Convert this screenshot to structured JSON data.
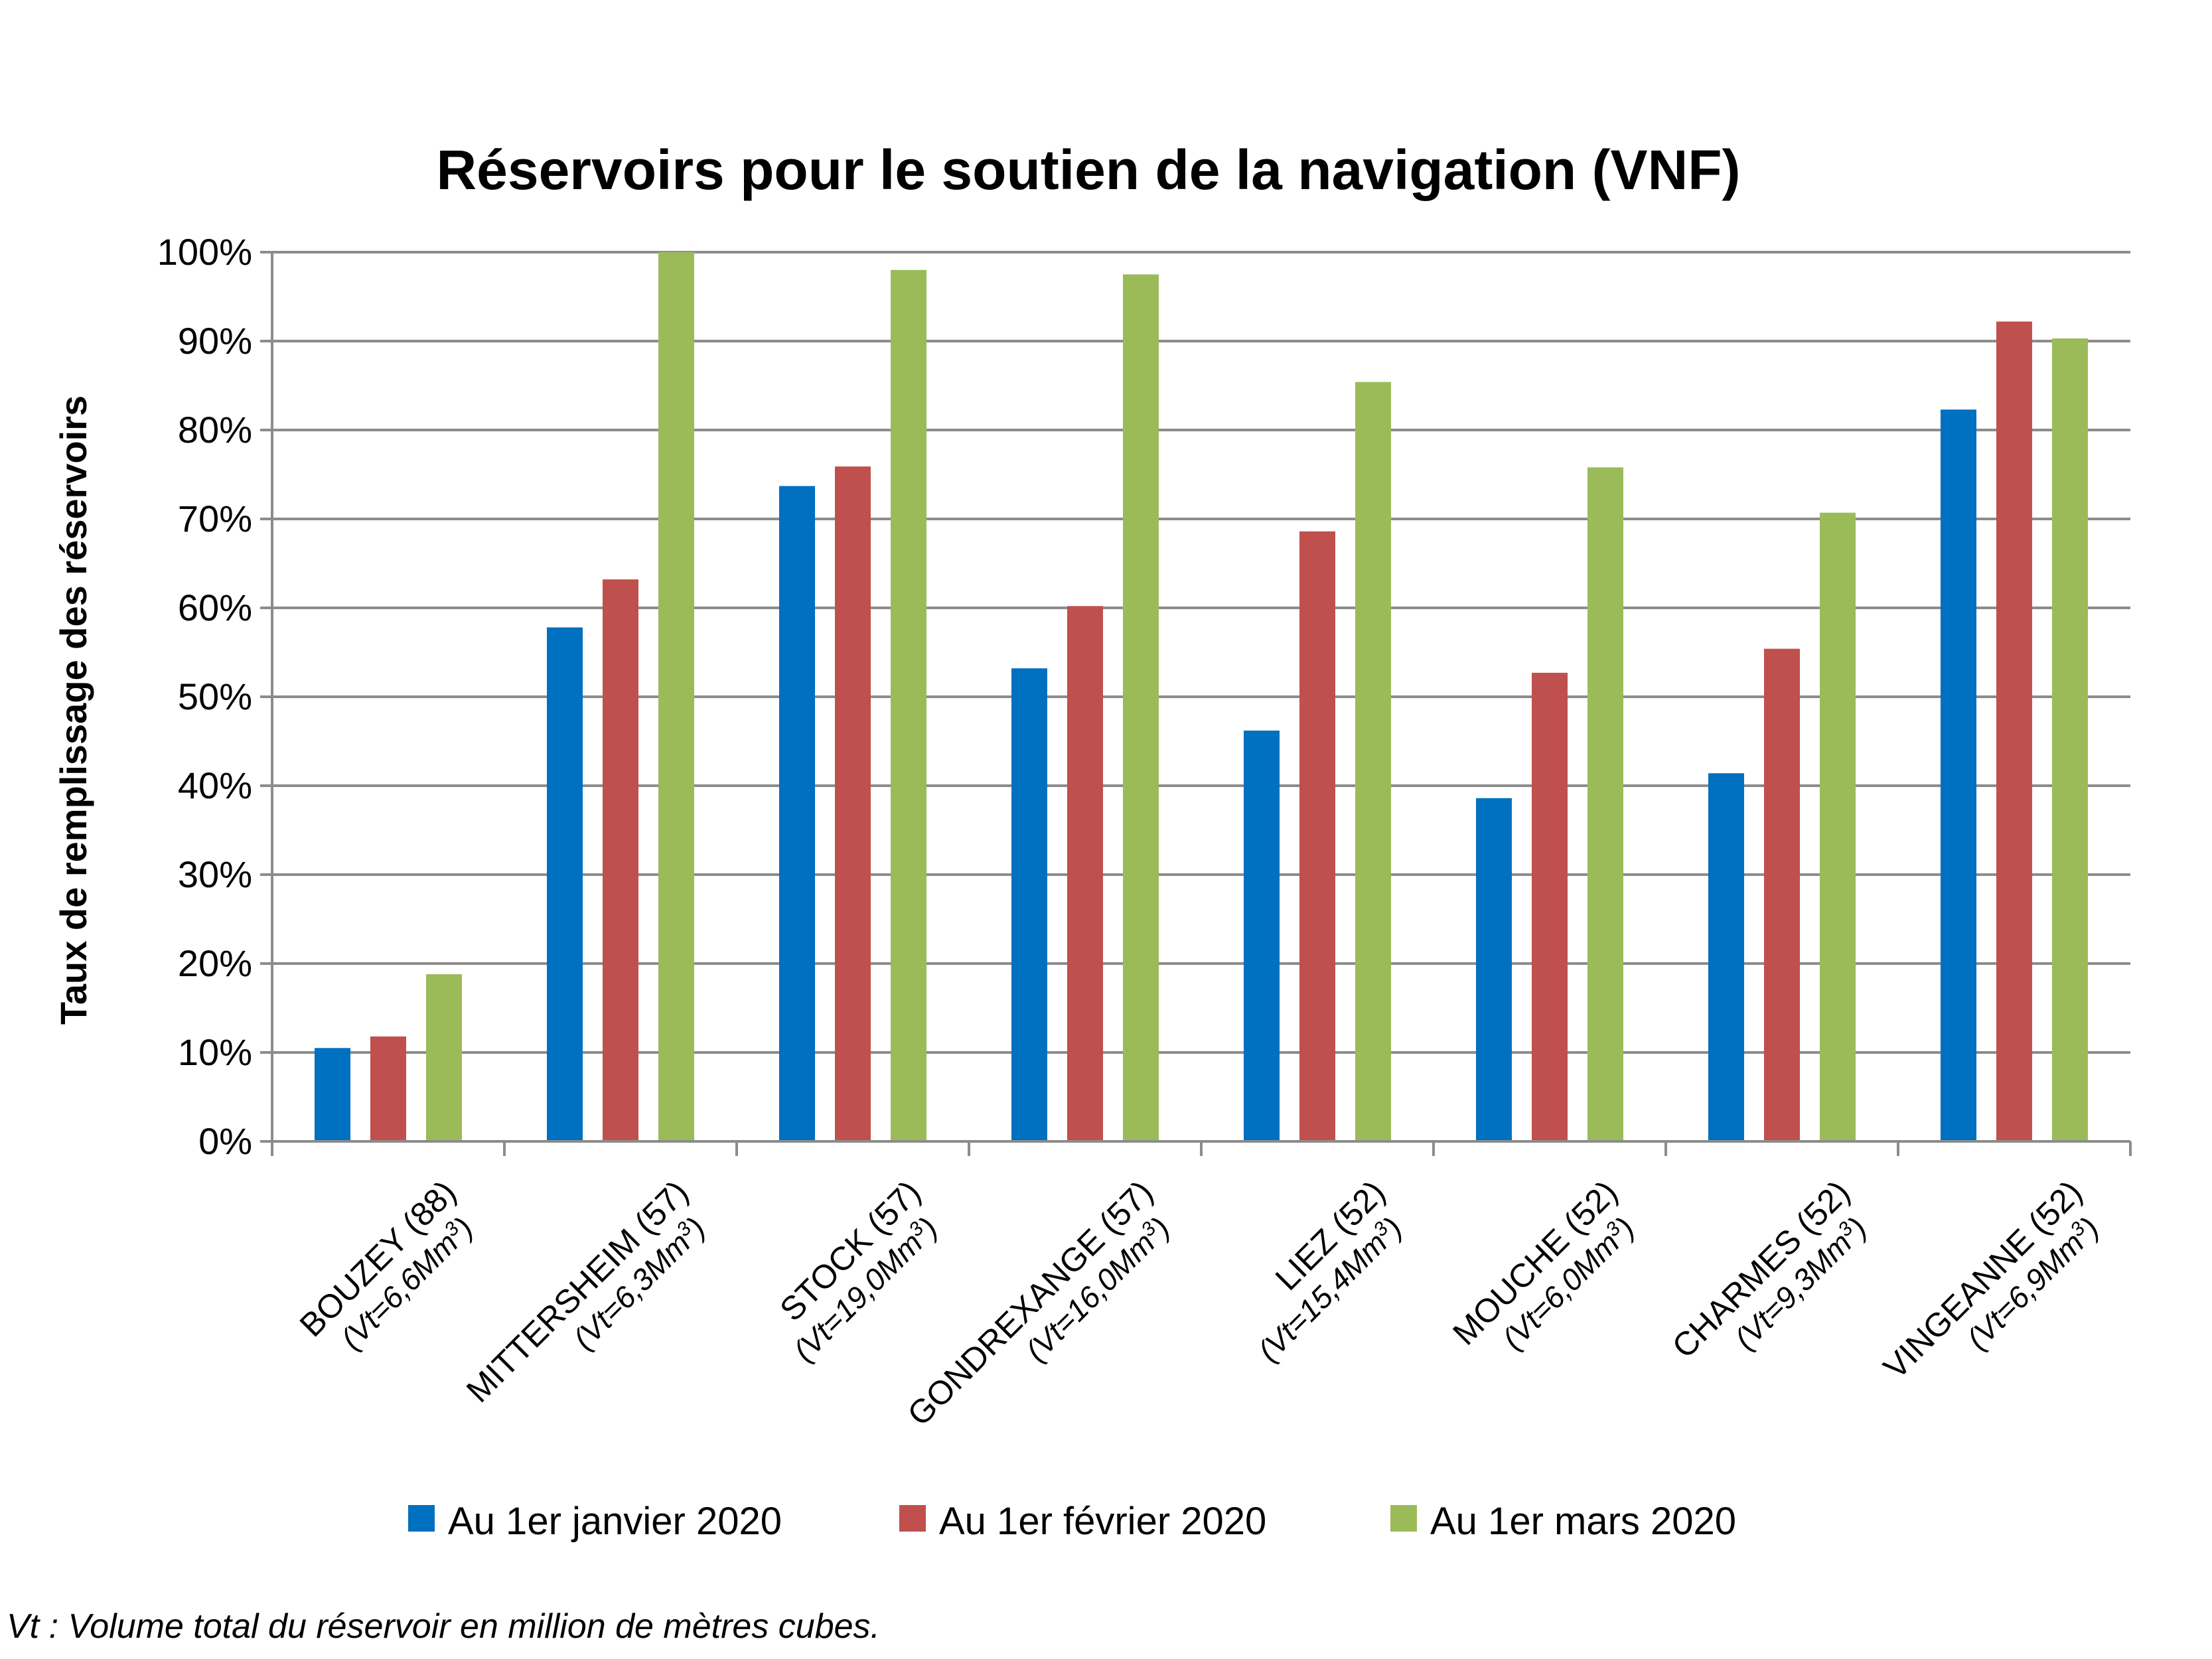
{
  "chart_data": {
    "type": "bar",
    "title": "Réservoirs pour le soutien de la navigation (VNF)",
    "ylabel": "Taux de remplissage des réservoirs",
    "xlabel": "",
    "ylim": [
      0,
      100
    ],
    "yticks": [
      "0%",
      "10%",
      "20%",
      "30%",
      "40%",
      "50%",
      "60%",
      "70%",
      "80%",
      "90%",
      "100%"
    ],
    "grid": true,
    "legend": "bottom",
    "categories": [
      {
        "name": "BOUZEY (88)",
        "volume": "(Vt=6,6Mm",
        "sup": "3",
        "volume_end": ")"
      },
      {
        "name": "MITTERSHEIM (57)",
        "volume": "(Vt=6,3Mm",
        "sup": "3",
        "volume_end": ")"
      },
      {
        "name": "STOCK (57)",
        "volume": "(Vt=19,0Mm",
        "sup": "3",
        "volume_end": ")"
      },
      {
        "name": "GONDREXANGE (57)",
        "volume": "(Vt=16,0Mm",
        "sup": "3",
        "volume_end": ")"
      },
      {
        "name": "LIEZ (52)",
        "volume": "(Vt=15,4Mm",
        "sup": "3",
        "volume_end": ")"
      },
      {
        "name": "MOUCHE (52)",
        "volume": "(Vt=6,0Mm",
        "sup": "3",
        "volume_end": ")"
      },
      {
        "name": "CHARMES (52)",
        "volume": "(Vt=9,3Mm",
        "sup": "3",
        "volume_end": ")"
      },
      {
        "name": "VINGEANNE (52)",
        "volume": "(Vt=6,9Mm",
        "sup": "3",
        "volume_end": ")"
      }
    ],
    "series": [
      {
        "name": "Au 1er janvier 2020",
        "color": "#0070c0",
        "values": [
          10.5,
          57.8,
          73.7,
          53.2,
          46.2,
          38.6,
          41.4,
          82.3
        ]
      },
      {
        "name": "Au 1er février 2020",
        "color": "#c0504d",
        "values": [
          11.8,
          63.2,
          75.9,
          60.2,
          68.6,
          52.7,
          55.4,
          92.2
        ]
      },
      {
        "name": "Au 1er mars 2020",
        "color": "#9bbb59",
        "values": [
          18.8,
          100.0,
          98.0,
          97.5,
          85.4,
          75.8,
          70.7,
          90.3
        ]
      }
    ]
  },
  "footnote": "Vt : Volume total du réservoir en million de mètres cubes."
}
